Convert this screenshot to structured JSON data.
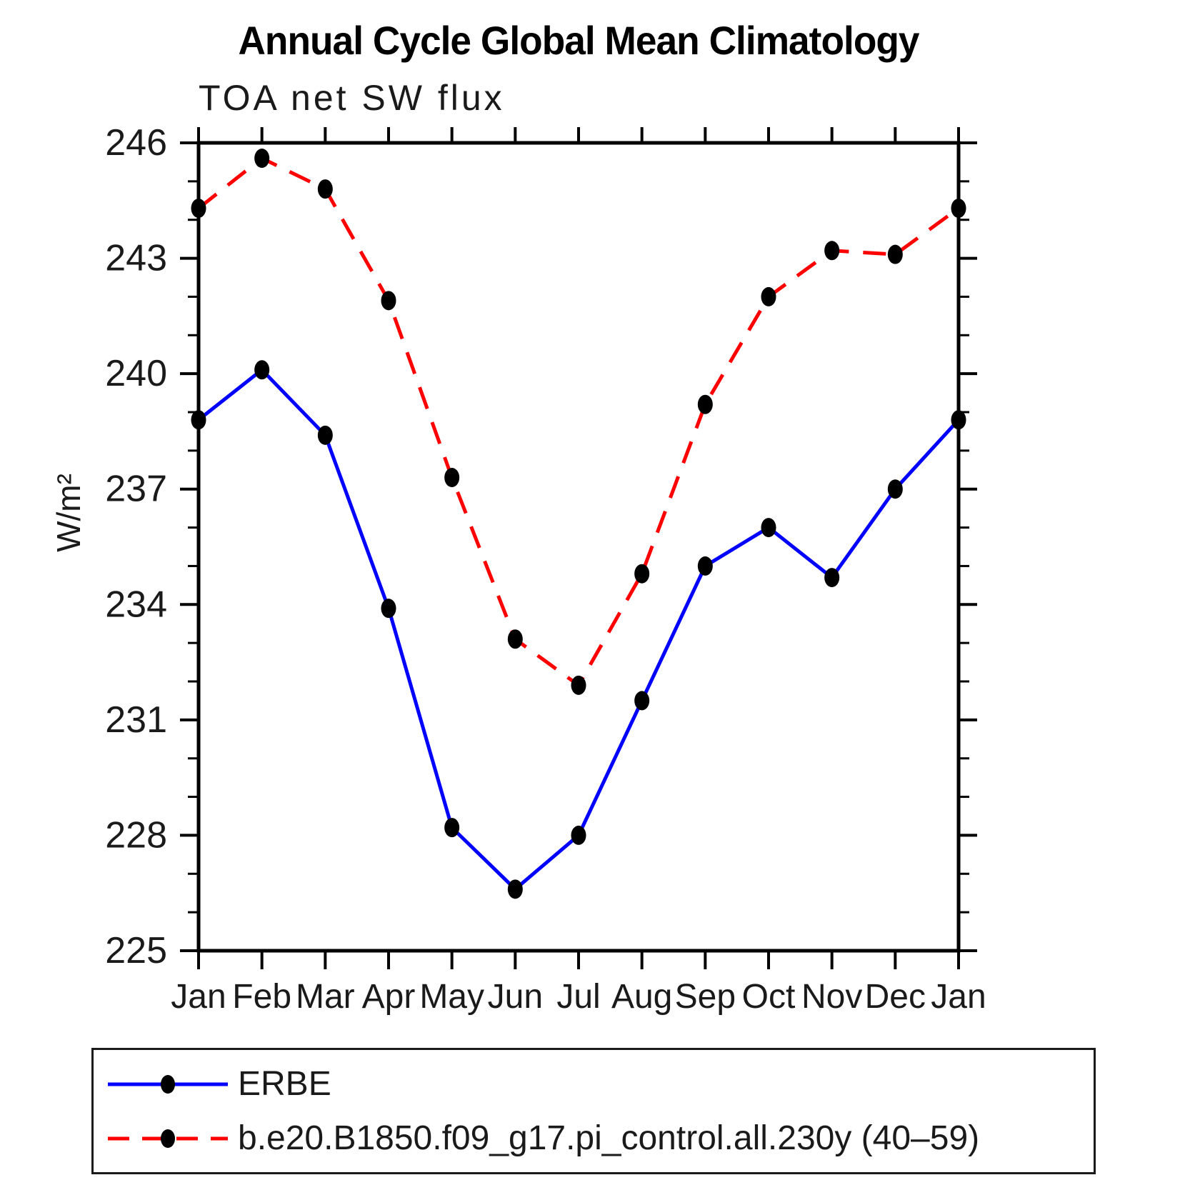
{
  "chart_data": {
    "type": "line",
    "title": "Annual Cycle Global Mean Climatology",
    "subtitle": "TOA net SW flux",
    "ylabel": "W/m²",
    "xlabel": "",
    "categories": [
      "Jan",
      "Feb",
      "Mar",
      "Apr",
      "May",
      "Jun",
      "Jul",
      "Aug",
      "Sep",
      "Oct",
      "Nov",
      "Dec",
      "Jan"
    ],
    "ylim": [
      225,
      246
    ],
    "ytick_major": [
      225,
      228,
      231,
      234,
      237,
      240,
      243,
      246
    ],
    "ytick_minor_step": 1,
    "grid": false,
    "legend_position": "bottom-left-box",
    "marker": "filled-circle",
    "marker_color": "#000000",
    "series": [
      {
        "name": "ERBE",
        "color": "#0000ff",
        "line_style": "solid",
        "values": [
          238.8,
          240.1,
          238.4,
          233.9,
          228.2,
          226.6,
          228.0,
          231.5,
          235.0,
          236.0,
          234.7,
          237.0,
          238.8
        ]
      },
      {
        "name": "b.e20.B1850.f09_g17.pi_control.all.230y (40–59)",
        "color": "#ff0000",
        "line_style": "dashed",
        "values": [
          244.3,
          245.6,
          244.8,
          241.9,
          237.3,
          233.1,
          231.9,
          234.8,
          239.2,
          242.0,
          243.2,
          243.1,
          244.3
        ]
      }
    ]
  }
}
